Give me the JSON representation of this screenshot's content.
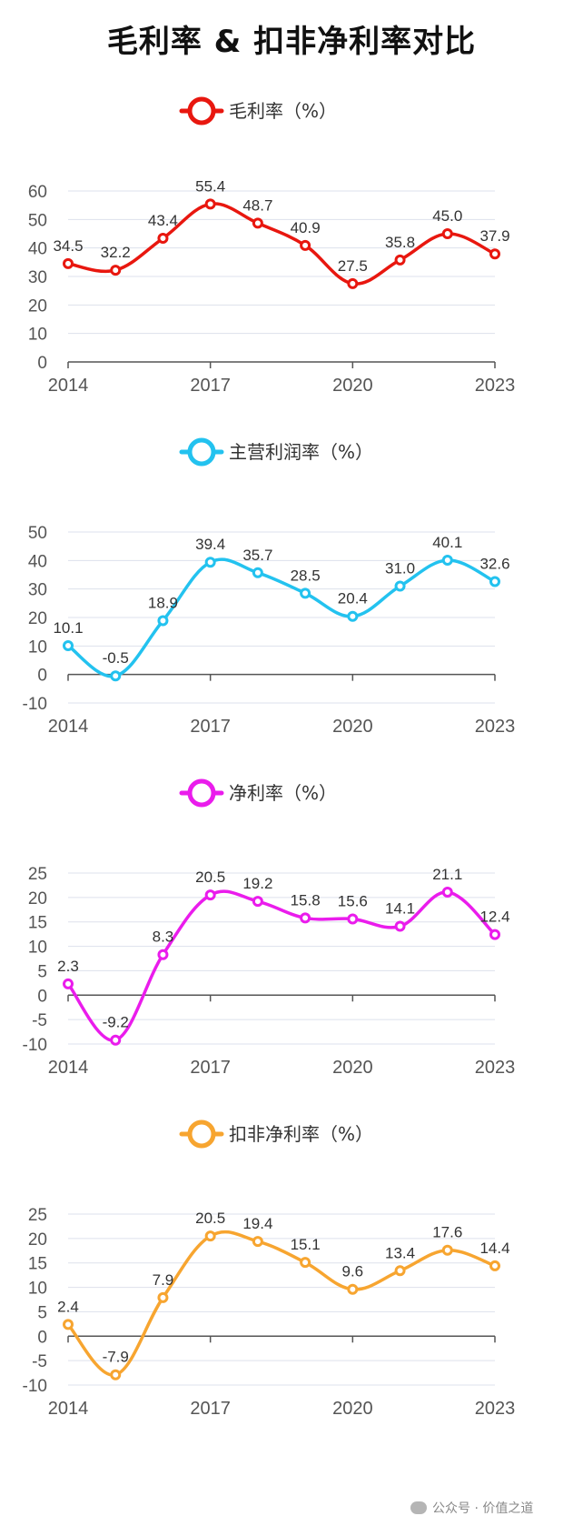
{
  "page_title": "毛利率 & 扣非净利率对比",
  "watermark": {
    "text": "公众号 · 价值之道",
    "icon": "wechat-icon"
  },
  "chart_data": [
    {
      "type": "line",
      "title": "",
      "legend": "毛利率（%）",
      "legend_position": "top-center",
      "color": "#e8170f",
      "x": [
        "2014",
        "2015",
        "2016",
        "2017",
        "2018",
        "2019",
        "2020",
        "2021",
        "2022",
        "2023"
      ],
      "values": [
        34.5,
        32.2,
        43.4,
        55.4,
        48.7,
        40.9,
        27.5,
        35.8,
        45.0,
        37.9
      ],
      "value_labels": [
        "34.5",
        "32.2",
        "43.4",
        "55.4",
        "48.7",
        "40.9",
        "27.5",
        "35.8",
        "45.0",
        "37.9"
      ],
      "x_tick_labels": [
        "2014",
        "2017",
        "2020",
        "2023"
      ],
      "y_ticks": [
        0,
        10,
        20,
        30,
        40,
        50,
        60
      ],
      "ylim": [
        0,
        60
      ],
      "grid": true
    },
    {
      "type": "line",
      "title": "",
      "legend": "主营利润率（%）",
      "legend_position": "top-center",
      "color": "#23c2ef",
      "x": [
        "2014",
        "2015",
        "2016",
        "2017",
        "2018",
        "2019",
        "2020",
        "2021",
        "2022",
        "2023"
      ],
      "values": [
        10.1,
        -0.5,
        18.9,
        39.4,
        35.7,
        28.5,
        20.4,
        31.0,
        40.1,
        32.6
      ],
      "value_labels": [
        "10.1",
        "-0.5",
        "18.9",
        "39.4",
        "35.7",
        "28.5",
        "20.4",
        "31.0",
        "40.1",
        "32.6"
      ],
      "x_tick_labels": [
        "2014",
        "2017",
        "2020",
        "2023"
      ],
      "y_ticks": [
        -10,
        0,
        10,
        20,
        30,
        40,
        50
      ],
      "ylim": [
        -10,
        50
      ],
      "grid": true
    },
    {
      "type": "line",
      "title": "",
      "legend": "净利率（%）",
      "legend_position": "top-center",
      "color": "#ea1cec",
      "x": [
        "2014",
        "2015",
        "2016",
        "2017",
        "2018",
        "2019",
        "2020",
        "2021",
        "2022",
        "2023"
      ],
      "values": [
        2.3,
        -9.2,
        8.3,
        20.5,
        19.2,
        15.8,
        15.6,
        14.1,
        21.1,
        12.4
      ],
      "value_labels": [
        "2.3",
        "-9.2",
        "8.3",
        "20.5",
        "19.2",
        "15.8",
        "15.6",
        "14.1",
        "21.1",
        "12.4"
      ],
      "x_tick_labels": [
        "2014",
        "2017",
        "2020",
        "2023"
      ],
      "y_ticks": [
        -10,
        -5,
        0,
        5,
        10,
        15,
        20,
        25
      ],
      "ylim": [
        -10,
        25
      ],
      "grid": true
    },
    {
      "type": "line",
      "title": "",
      "legend": "扣非净利率（%）",
      "legend_position": "top-center",
      "color": "#f7a530",
      "x": [
        "2014",
        "2015",
        "2016",
        "2017",
        "2018",
        "2019",
        "2020",
        "2021",
        "2022",
        "2023"
      ],
      "values": [
        2.4,
        -7.9,
        7.9,
        20.5,
        19.4,
        15.1,
        9.6,
        13.4,
        17.6,
        14.4
      ],
      "value_labels": [
        "2.4",
        "-7.9",
        "7.9",
        "20.5",
        "19.4",
        "15.1",
        "9.6",
        "13.4",
        "17.6",
        "14.4"
      ],
      "x_tick_labels": [
        "2014",
        "2017",
        "2020",
        "2023"
      ],
      "y_ticks": [
        -10,
        -5,
        0,
        5,
        10,
        15,
        20,
        25
      ],
      "ylim": [
        -10,
        25
      ],
      "grid": true
    }
  ]
}
